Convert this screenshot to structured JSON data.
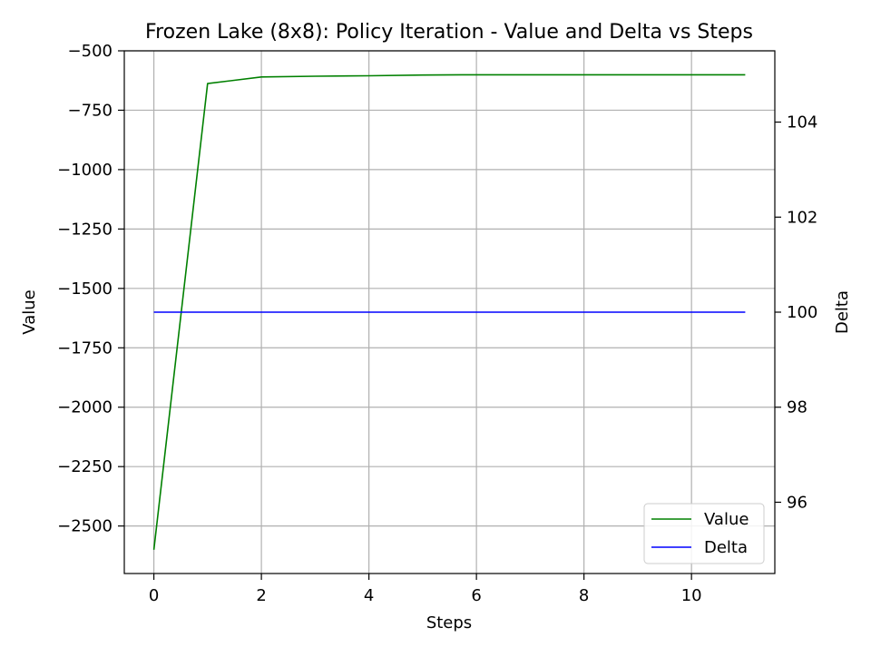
{
  "chart_data": {
    "type": "line",
    "title": "Frozen Lake (8x8): Policy Iteration - Value and Delta vs Steps",
    "xlabel": "Steps",
    "ylabel": "Value",
    "ylabel_right": "Delta",
    "x": [
      0,
      1,
      2,
      3,
      4,
      5,
      6,
      7,
      8,
      9,
      10,
      11
    ],
    "xlim": [
      -0.55,
      11.55
    ],
    "ylim": [
      -2700,
      -500
    ],
    "ylim_right": [
      94.5,
      105.5
    ],
    "xticks": [
      0,
      2,
      4,
      6,
      8,
      10
    ],
    "yticks": [
      -500,
      -750,
      -1000,
      -1250,
      -1500,
      -1750,
      -2000,
      -2250,
      -2500
    ],
    "yticks_right": [
      96,
      98,
      100,
      102,
      104
    ],
    "grid": true,
    "legend_position": "lower right",
    "series": [
      {
        "name": "Value",
        "axis": "left",
        "color": "#008000",
        "values": [
          -2600,
          -638,
          -610,
          -607,
          -605,
          -602,
          -601,
          -601,
          -601,
          -601,
          -601,
          -601
        ]
      },
      {
        "name": "Delta",
        "axis": "right",
        "color": "#0000ff",
        "values": [
          100,
          100,
          100,
          100,
          100,
          100,
          100,
          100,
          100,
          100,
          100,
          100
        ]
      }
    ]
  }
}
